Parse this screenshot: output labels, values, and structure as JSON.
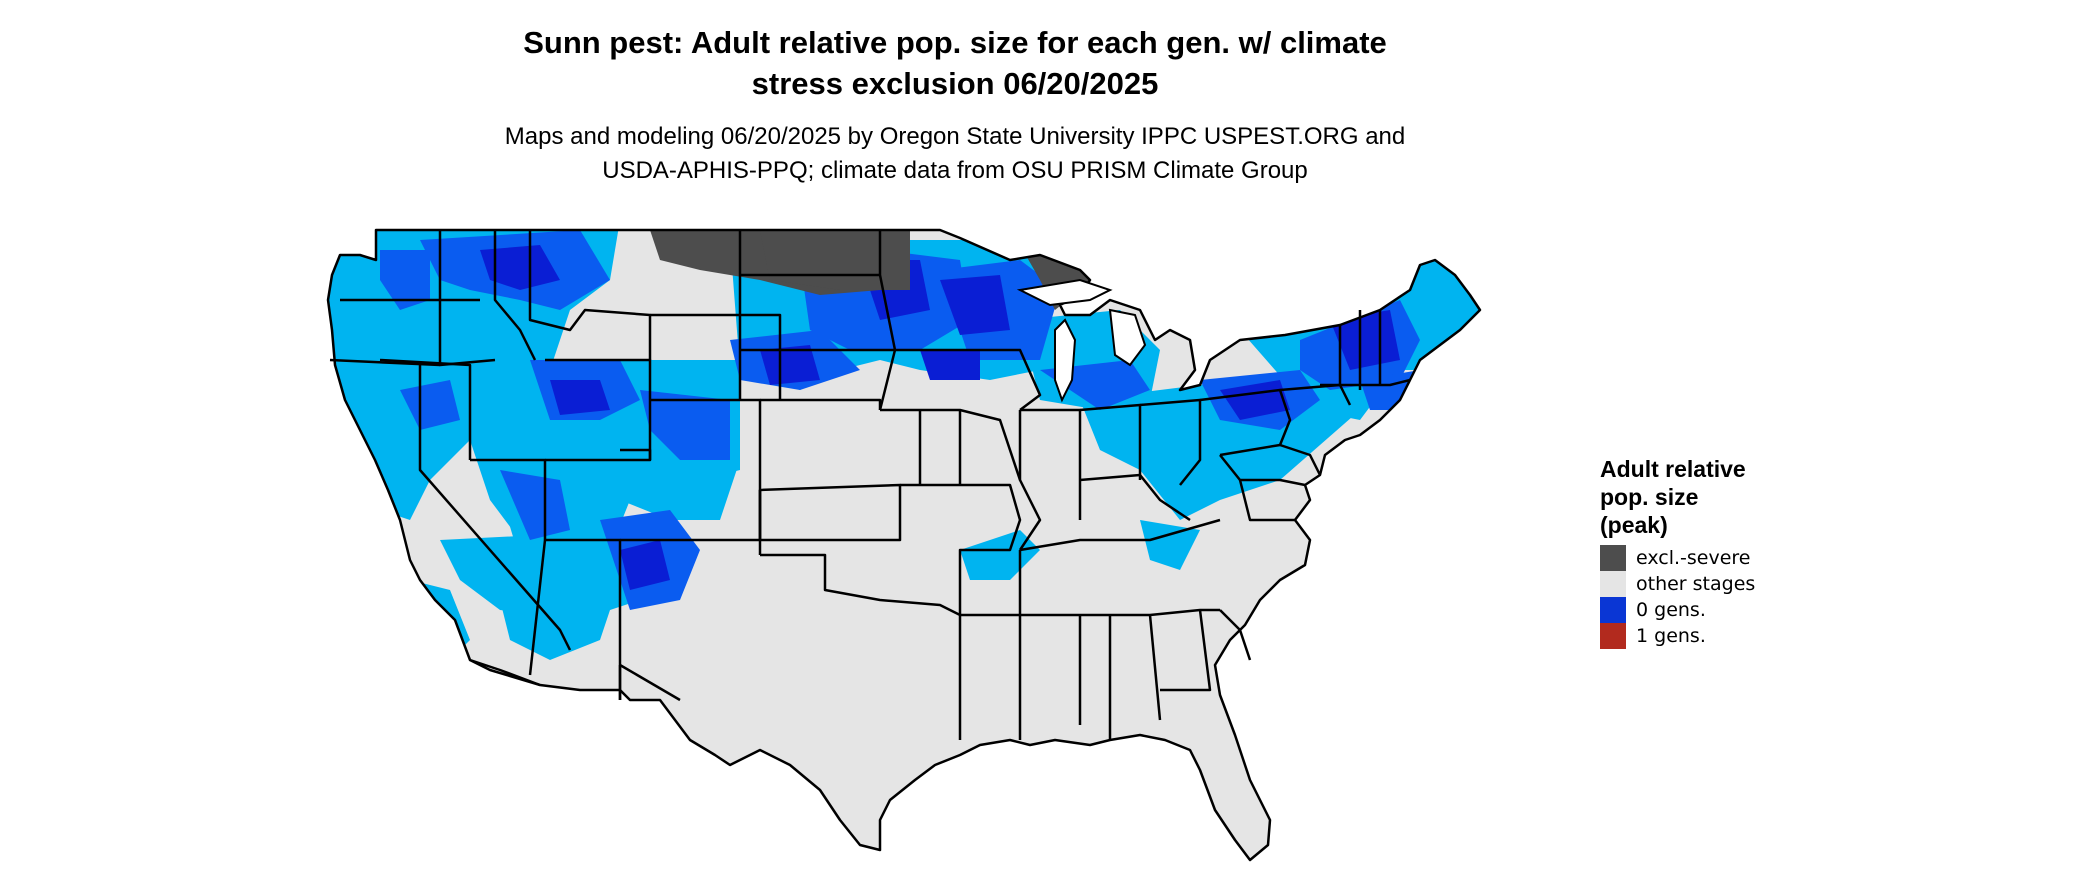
{
  "map": {
    "title": "Sunn pest: Adult relative pop. size for each gen. w/ climate\nstress exclusion 06/20/2025",
    "subtitle": "Maps and modeling 06/20/2025 by Oregon State University IPPC USPEST.ORG and\nUSDA-APHIS-PPQ; climate data from OSU PRISM Climate Group",
    "region": "Contiguous United States"
  },
  "legend": {
    "title": "Adult relative\npop. size\n(peak)",
    "items": [
      {
        "label": "excl.-severe",
        "color": "#4d4d4d"
      },
      {
        "label": "other stages",
        "color": "#e5e5e5"
      },
      {
        "label": "0 gens.",
        "color": "#0a36d4"
      },
      {
        "label": "1 gens.",
        "color": "#b22a1e"
      }
    ]
  },
  "colors": {
    "land": "#e5e5e5",
    "excluded": "#4d4d4d",
    "light_blue": "#00b4f0",
    "mid_blue": "#0a5cf0",
    "dark_blue": "#0a1ed4",
    "border": "#000000"
  }
}
